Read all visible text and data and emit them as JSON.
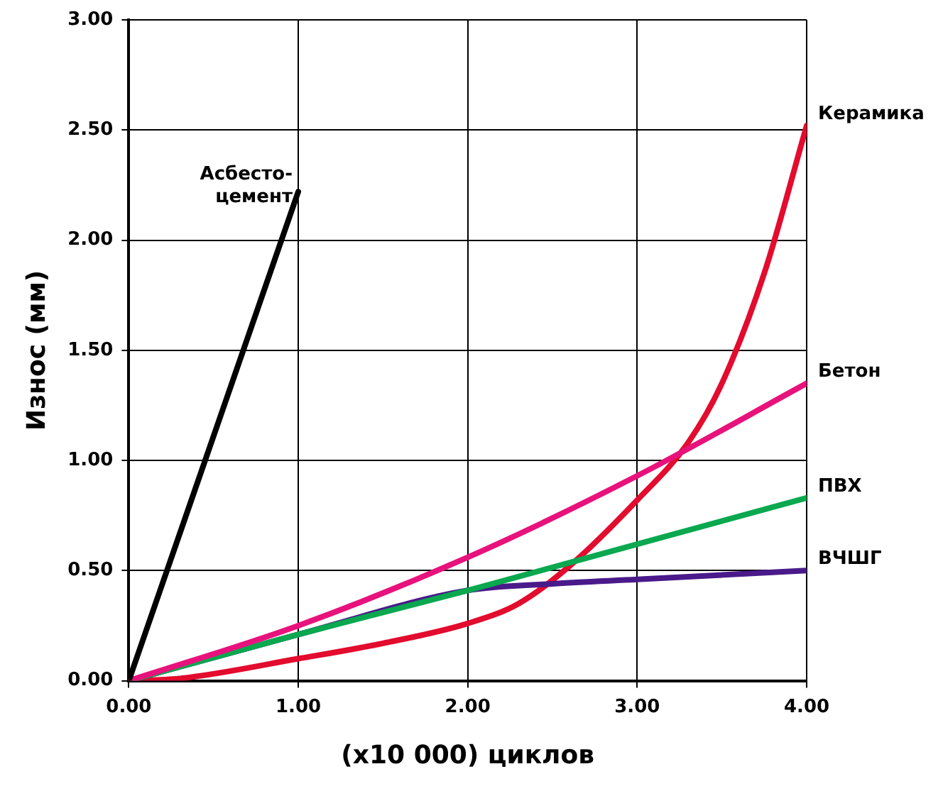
{
  "chart_data": {
    "type": "line",
    "xlabel": "(x10 000) циклов",
    "ylabel": "Износ (мм)",
    "xlim": [
      0,
      4
    ],
    "ylim": [
      0,
      3
    ],
    "xticks": [
      {
        "value": 0,
        "label": "0.00"
      },
      {
        "value": 1,
        "label": "1.00"
      },
      {
        "value": 2,
        "label": "2.00"
      },
      {
        "value": 3,
        "label": "3.00"
      },
      {
        "value": 4,
        "label": "4.00"
      }
    ],
    "yticks": [
      {
        "value": 0,
        "label": "0.00"
      },
      {
        "value": 0.5,
        "label": "0.50"
      },
      {
        "value": 1,
        "label": "1.00"
      },
      {
        "value": 1.5,
        "label": "1.50"
      },
      {
        "value": 2,
        "label": "2.00"
      },
      {
        "value": 2.5,
        "label": "2.50"
      },
      {
        "value": 3,
        "label": "3.00"
      }
    ],
    "grid": true,
    "legend": false,
    "marker": "none",
    "line_style": "solid",
    "series": [
      {
        "name": "Асбесто-цемент",
        "color": "#000000",
        "x": [
          0,
          1
        ],
        "values": [
          0,
          2.22
        ]
      },
      {
        "name": "Бетон",
        "color": "#e8127c",
        "x": [
          0,
          1,
          2,
          3,
          4
        ],
        "values": [
          0,
          0.25,
          0.56,
          0.93,
          1.35
        ]
      },
      {
        "name": "ПВХ",
        "color": "#0aa84f",
        "x": [
          0,
          1,
          2,
          3,
          4
        ],
        "values": [
          0,
          0.21,
          0.41,
          0.62,
          0.83
        ]
      },
      {
        "name": "ВЧШГ",
        "color": "#4a1a8a",
        "x": [
          0,
          1,
          2,
          2.5,
          3,
          4
        ],
        "values": [
          0,
          0.21,
          0.41,
          0.44,
          0.46,
          0.5
        ]
      },
      {
        "name": "Керамика",
        "color": "#e30b2e",
        "x": [
          0,
          0.3,
          1,
          1.5,
          2,
          2.3,
          2.6,
          3,
          3.3,
          3.5,
          3.75,
          4
        ],
        "values": [
          0,
          0.01,
          0.1,
          0.17,
          0.26,
          0.35,
          0.52,
          0.82,
          1.08,
          1.35,
          1.85,
          2.52
        ]
      }
    ]
  }
}
